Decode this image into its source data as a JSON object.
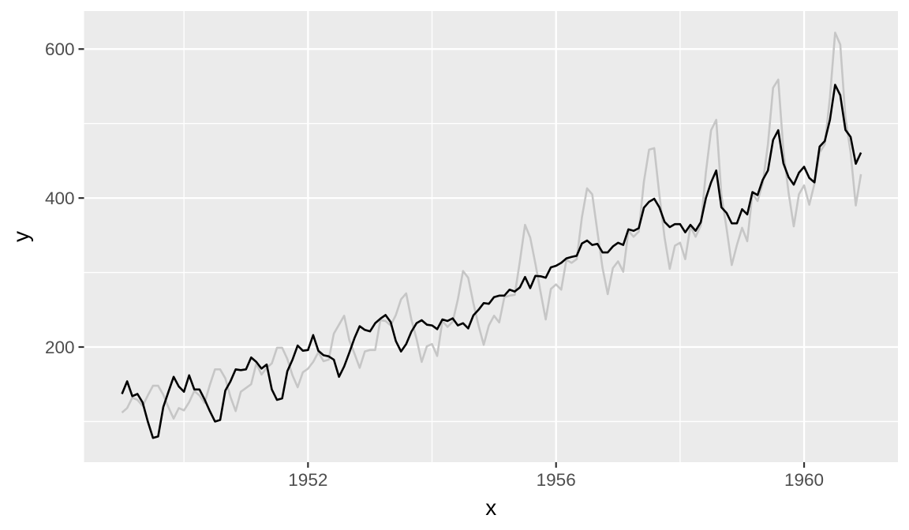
{
  "chart_data": {
    "type": "line",
    "title": "",
    "xlabel": "x",
    "ylabel": "y",
    "x_start": 1949.0,
    "points_per_year": 12,
    "x_range": [
      1949.0,
      1960.9167
    ],
    "ylim_panel": [
      73,
      628
    ],
    "x_major_ticks": [
      1952,
      1956,
      1960
    ],
    "x_minor_gridlines": [
      1950,
      1954,
      1958
    ],
    "y_major_ticks": [
      200,
      400,
      600
    ],
    "y_minor_gridlines": [
      100,
      300,
      500
    ],
    "grid": "major+minor",
    "legend_position": "none",
    "series": [
      {
        "name": "original-grey-line",
        "color": "#c6c6c6",
        "values": [
          112,
          118,
          132,
          129,
          121,
          135,
          148,
          148,
          136,
          119,
          104,
          118,
          115,
          126,
          141,
          135,
          125,
          149,
          170,
          170,
          158,
          133,
          114,
          140,
          145,
          150,
          178,
          163,
          172,
          178,
          199,
          199,
          184,
          162,
          146,
          166,
          171,
          180,
          193,
          181,
          183,
          218,
          230,
          242,
          209,
          191,
          172,
          194,
          196,
          196,
          236,
          235,
          229,
          243,
          264,
          272,
          237,
          211,
          180,
          201,
          204,
          188,
          235,
          227,
          234,
          264,
          302,
          293,
          259,
          229,
          203,
          229,
          242,
          233,
          267,
          269,
          270,
          315,
          364,
          347,
          312,
          274,
          237,
          278,
          284,
          277,
          317,
          313,
          318,
          374,
          413,
          405,
          355,
          306,
          271,
          306,
          315,
          301,
          356,
          348,
          355,
          422,
          465,
          467,
          404,
          347,
          305,
          336,
          340,
          318,
          362,
          348,
          363,
          435,
          491,
          505,
          404,
          359,
          310,
          337,
          360,
          342,
          406,
          396,
          420,
          472,
          548,
          559,
          463,
          407,
          362,
          405,
          417,
          391,
          419,
          461,
          472,
          535,
          622,
          606,
          508,
          461,
          390,
          432
        ]
      },
      {
        "name": "seasonally-adjusted-black-line",
        "color": "#000000",
        "values": [
          137,
          154,
          134,
          137,
          125.5,
          100,
          78,
          80,
          119.5,
          140,
          160,
          147,
          140,
          162,
          143,
          143,
          129.5,
          114,
          100,
          102,
          141.5,
          154,
          170,
          169,
          170,
          186,
          180,
          171,
          176.5,
          143,
          129,
          131,
          167.5,
          183,
          202,
          195,
          196,
          216,
          195,
          189,
          187.5,
          183,
          160,
          174,
          192.5,
          212,
          228,
          223,
          221,
          232,
          238,
          243,
          233.5,
          208,
          194,
          204,
          220.5,
          232,
          236,
          230,
          229,
          224,
          237,
          235,
          238.5,
          229,
          232,
          225,
          242.5,
          250,
          259,
          258,
          267,
          269,
          269,
          277,
          274.5,
          280,
          294,
          279,
          295.5,
          295,
          293,
          307,
          309,
          313,
          319,
          321,
          322.5,
          339,
          343,
          337,
          338.5,
          327,
          327,
          335,
          340,
          337,
          358,
          356,
          359.5,
          387,
          395,
          399,
          387.5,
          368,
          361,
          365,
          365,
          354,
          364,
          356,
          367.5,
          400,
          421,
          437,
          387.5,
          380,
          366,
          366,
          385,
          378,
          408,
          404,
          424.5,
          437,
          478,
          491,
          446.5,
          428,
          418,
          434,
          442,
          427,
          421,
          469,
          476.5,
          505,
          552,
          538,
          491.5,
          482,
          446,
          461
        ]
      }
    ]
  },
  "style": {
    "panel_bg": "#ebebeb",
    "outer_bg": "#ffffff",
    "grid_color": "#ffffff",
    "tick_mark_color": "#333333",
    "tick_label_color": "#4d4d4d",
    "axis_title_color": "#000000"
  }
}
